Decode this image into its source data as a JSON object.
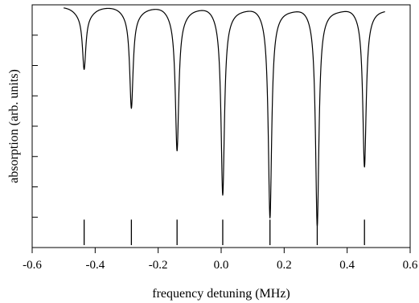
{
  "chart_data": {
    "type": "line",
    "title": "",
    "xlabel": "frequency detuning (MHz)",
    "ylabel": "absorption (arb. units)",
    "xlim": [
      -0.6,
      0.6
    ],
    "ylim": [
      0,
      1
    ],
    "x_ticks": [
      -0.6,
      -0.4,
      -0.2,
      0.0,
      0.2,
      0.4,
      0.6
    ],
    "x_tick_labels": [
      "-0.6",
      "-0.4",
      "-0.2",
      "0.0",
      "0.2",
      "0.4",
      "0.6"
    ],
    "y_ticks": [
      0.0,
      0.125,
      0.25,
      0.375,
      0.5,
      0.625,
      0.75,
      0.875,
      1.0
    ],
    "y_tick_labels": [],
    "grid": false,
    "baseline": 0.985,
    "curve_x_range": [
      -0.5,
      0.52
    ],
    "peaks": [
      {
        "x": -0.435,
        "min_y": 0.765
      },
      {
        "x": -0.285,
        "min_y": 0.605
      },
      {
        "x": -0.14,
        "min_y": 0.445
      },
      {
        "x": 0.005,
        "min_y": 0.26
      },
      {
        "x": 0.155,
        "min_y": 0.165
      },
      {
        "x": 0.305,
        "min_y": 0.13
      },
      {
        "x": 0.455,
        "min_y": 0.37
      }
    ],
    "markers": {
      "x": [
        -0.435,
        -0.285,
        -0.14,
        0.005,
        0.155,
        0.305,
        0.455
      ],
      "y_range": [
        0.01,
        0.115
      ]
    }
  }
}
